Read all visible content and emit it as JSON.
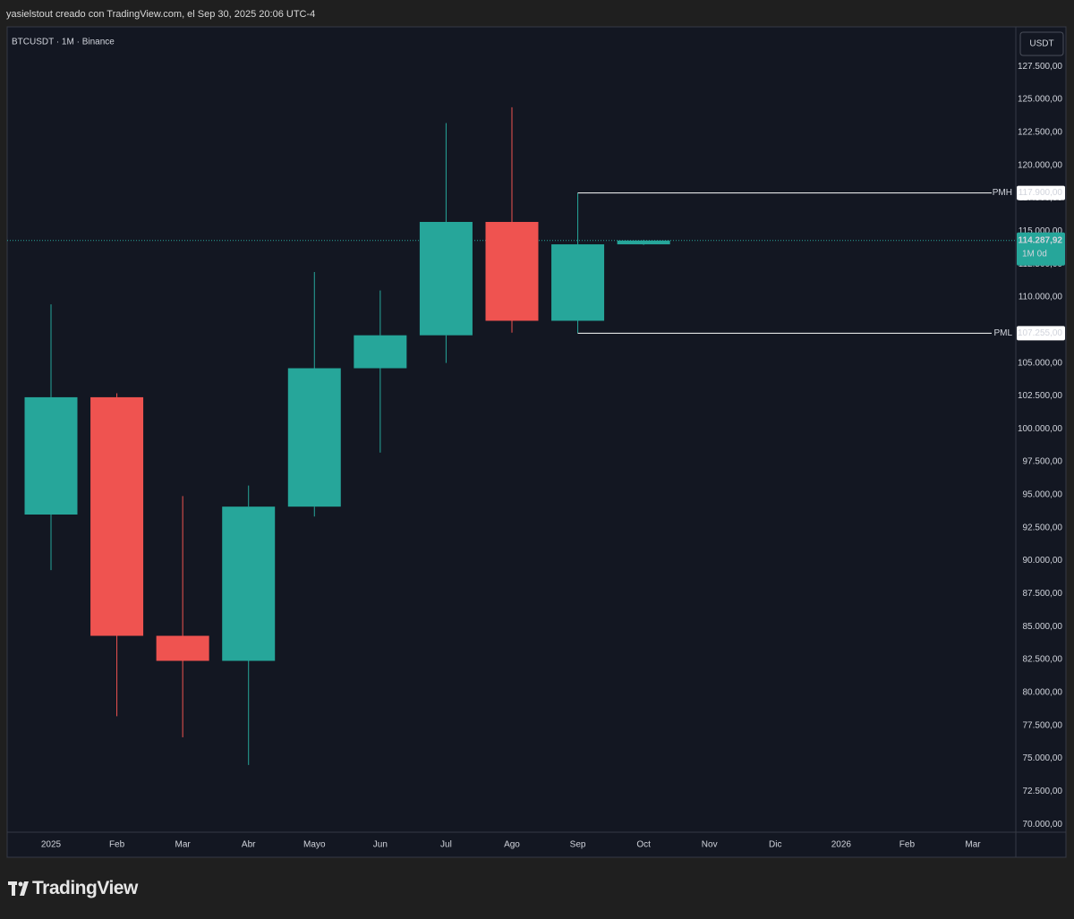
{
  "header": {
    "attribution": "yasielstout creado con TradingView.com, el Sep 30, 2025 20:06 UTC-4"
  },
  "chart_data": {
    "type": "candlestick",
    "title": "BTCUSDT · 1M · Binance",
    "currency": "USDT",
    "categories": [
      "2025",
      "Feb",
      "Mar",
      "Abr",
      "Mayo",
      "Jun",
      "Jul",
      "Ago",
      "Sep",
      "Oct",
      "Nov",
      "Dic",
      "2026",
      "Feb",
      "Mar"
    ],
    "open": [
      93500,
      102400,
      84300,
      82400,
      94100,
      104600,
      107100,
      115700,
      108200,
      114000,
      null,
      null,
      null,
      null,
      null
    ],
    "high": [
      109450,
      102700,
      94900,
      95700,
      111900,
      110500,
      123200,
      124400,
      117900,
      114350,
      null,
      null,
      null,
      null,
      null
    ],
    "low": [
      89280,
      78200,
      76600,
      74500,
      93350,
      98200,
      105000,
      107300,
      107255,
      113950,
      null,
      null,
      null,
      null,
      null
    ],
    "close": [
      102400,
      84300,
      82400,
      94100,
      104600,
      107100,
      115700,
      108200,
      114000,
      114287.92,
      null,
      null,
      null,
      null,
      null
    ],
    "up_color": "#26a69a",
    "down_color": "#ef5350",
    "ylim": [
      69400,
      130500
    ],
    "yticks": [
      {
        "value": 70000,
        "label": "70.000,00"
      },
      {
        "value": 72500,
        "label": "72.500,00"
      },
      {
        "value": 75000,
        "label": "75.000,00"
      },
      {
        "value": 77500,
        "label": "77.500,00"
      },
      {
        "value": 80000,
        "label": "80.000,00"
      },
      {
        "value": 82500,
        "label": "82.500,00"
      },
      {
        "value": 85000,
        "label": "85.000,00"
      },
      {
        "value": 87500,
        "label": "87.500,00"
      },
      {
        "value": 90000,
        "label": "90.000,00"
      },
      {
        "value": 92500,
        "label": "92.500,00"
      },
      {
        "value": 95000,
        "label": "95.000,00"
      },
      {
        "value": 97500,
        "label": "97.500,00"
      },
      {
        "value": 100000,
        "label": "100.000,00"
      },
      {
        "value": 102500,
        "label": "102.500,00"
      },
      {
        "value": 105000,
        "label": "105.000,00"
      },
      {
        "value": 107500,
        "label": "107.500,00"
      },
      {
        "value": 110000,
        "label": "110.000,00"
      },
      {
        "value": 112500,
        "label": "112.500,00"
      },
      {
        "value": 115000,
        "label": "115.000,00"
      },
      {
        "value": 117500,
        "label": "117.500,00"
      },
      {
        "value": 120000,
        "label": "120.000,00"
      },
      {
        "value": 122500,
        "label": "122.500,00"
      },
      {
        "value": 125000,
        "label": "125.000,00"
      },
      {
        "value": 127500,
        "label": "127.500,00"
      }
    ],
    "grid": false,
    "levels": [
      {
        "name": "PMH",
        "value": 117900,
        "value_label": "117.900,00"
      },
      {
        "name": "PML",
        "value": 107255,
        "value_label": "107.255,00"
      }
    ],
    "last_price": {
      "value": 114287.92,
      "label": "114.287,92",
      "countdown": "1M 0d"
    }
  },
  "footer": {
    "brand": "TradingView"
  }
}
